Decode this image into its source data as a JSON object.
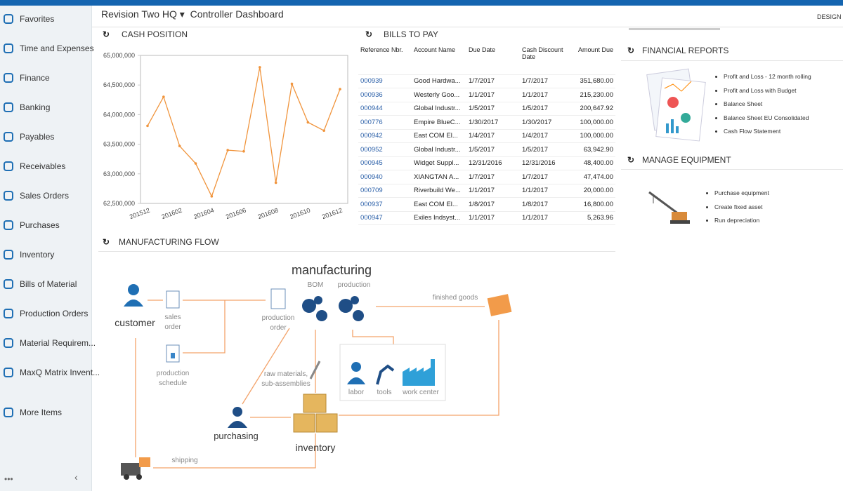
{
  "header": {
    "company": "Revision Two HQ",
    "page": "Controller Dashboard",
    "action": "DESIGN"
  },
  "nav": {
    "items": [
      "Favorites",
      "Time and Expenses",
      "Finance",
      "Banking",
      "Payables",
      "Receivables",
      "Sales Orders",
      "Purchases",
      "Inventory",
      "Bills of Material",
      "Production Orders",
      "Material Requirem...",
      "MaxQ Matrix Invent...",
      "More Items"
    ]
  },
  "chart_data": {
    "type": "line",
    "title": "CASH POSITION",
    "categories": [
      "201512",
      null,
      "201602",
      null,
      "201604",
      null,
      "201606",
      null,
      "201608",
      null,
      "201610",
      null,
      "201612"
    ],
    "series": [
      {
        "name": "Cash",
        "color": "#f0943c",
        "values": [
          63810000,
          64300000,
          63470000,
          63175000,
          62620000,
          63400000,
          63380000,
          64800000,
          62850000,
          64520000,
          63870000,
          63730000,
          64430000
        ]
      }
    ],
    "ylim": [
      62500000,
      65000000
    ],
    "yticks": [
      {
        "value": 62500000,
        "label": "62,500,000"
      },
      {
        "value": 63000000,
        "label": "63,000,000"
      },
      {
        "value": 63500000,
        "label": "63,500,000"
      },
      {
        "value": 64000000,
        "label": "64,000,000"
      },
      {
        "value": 64500000,
        "label": "64,500,000"
      },
      {
        "value": 65000000,
        "label": "65,000,000"
      }
    ],
    "grid": false
  },
  "bills": {
    "title": "BILLS TO PAY",
    "columns": [
      "Reference Nbr.",
      "Account Name",
      "Due Date",
      "Cash Discount Date",
      "Amount Due"
    ],
    "rows": [
      [
        "000939",
        "Good Hardwa...",
        "1/7/2017",
        "1/7/2017",
        "351,680.00"
      ],
      [
        "000936",
        "Westerly Goo...",
        "1/1/2017",
        "1/1/2017",
        "215,230.00"
      ],
      [
        "000944",
        "Global Industr...",
        "1/5/2017",
        "1/5/2017",
        "200,647.92"
      ],
      [
        "000776",
        "Empire BlueC...",
        "1/30/2017",
        "1/30/2017",
        "100,000.00"
      ],
      [
        "000942",
        "East COM El...",
        "1/4/2017",
        "1/4/2017",
        "100,000.00"
      ],
      [
        "000952",
        "Global Industr...",
        "1/5/2017",
        "1/5/2017",
        "63,942.90"
      ],
      [
        "000945",
        "Widget Suppl...",
        "12/31/2016",
        "12/31/2016",
        "48,400.00"
      ],
      [
        "000940",
        "XIANGTAN A...",
        "1/7/2017",
        "1/7/2017",
        "47,474.00"
      ],
      [
        "000709",
        "Riverbuild We...",
        "1/1/2017",
        "1/1/2017",
        "20,000.00"
      ],
      [
        "000937",
        "East COM El...",
        "1/8/2017",
        "1/8/2017",
        "16,800.00"
      ],
      [
        "000947",
        "Exiles Indsyst...",
        "1/1/2017",
        "1/1/2017",
        "5,263.96"
      ]
    ]
  },
  "financial_reports": {
    "title": "FINANCIAL REPORTS",
    "items": [
      "Profit and Loss - 12 month rolling",
      "Profit and Loss with Budget",
      "Balance Sheet",
      "Balance Sheet EU Consolidated",
      "Cash Flow Statement"
    ]
  },
  "manage_equipment": {
    "title": "MANAGE EQUIPMENT",
    "items": [
      "Purchase equipment",
      "Create fixed asset",
      "Run depreciation"
    ]
  },
  "manufacturing_flow": {
    "title": "MANUFACTURING FLOW",
    "labels": {
      "manufacturing": "manufacturing",
      "bom": "BOM",
      "production": "production",
      "customer": "customer",
      "sales_order": "sales order",
      "production_order": "production order",
      "finished_goods": "finished goods",
      "production_schedule": "production schedule",
      "raw_materials": "raw materials, sub-assemblies",
      "labor": "labor",
      "tools": "tools",
      "work_center": "work center",
      "purchasing": "purchasing",
      "inventory": "inventory",
      "shipping": "shipping"
    }
  }
}
